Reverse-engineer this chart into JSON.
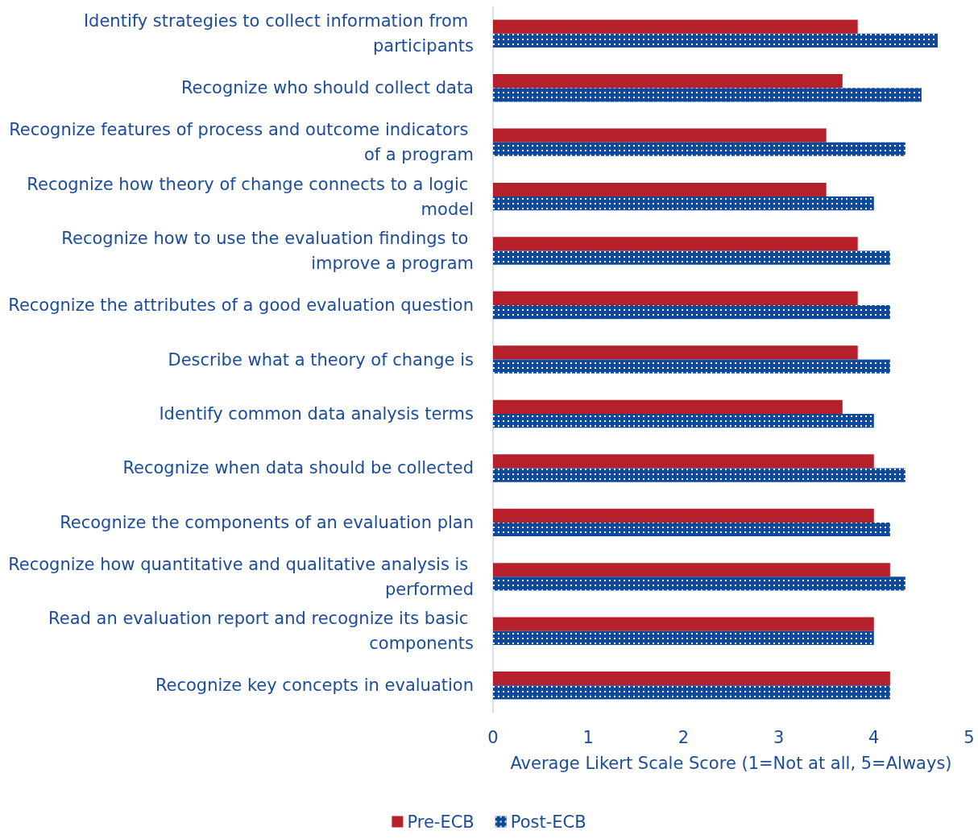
{
  "chart_data": {
    "type": "bar",
    "orientation": "horizontal",
    "categories": [
      "Identify strategies to collect information from participants",
      "Recognize who should collect data",
      "Recognize features of process and outcome indicators of a program",
      "Recognize how theory of change connects to a logic model",
      "Recognize how to use the evaluation findings to improve a program",
      "Recognize the attributes of a good evaluation question",
      "Describe what a theory of change is",
      "Identify common data analysis terms",
      "Recognize when data should be collected",
      "Recognize the components of an evaluation plan",
      "Recognize how quantitative and qualitative analysis is performed",
      "Read an evaluation report and recognize its basic components",
      "Recognize key concepts in evaluation"
    ],
    "series": [
      {
        "name": "Pre-ECB",
        "color": "#b5202a",
        "values": [
          3.83,
          3.67,
          3.5,
          3.5,
          3.83,
          3.83,
          3.83,
          3.67,
          4,
          4,
          4.17,
          4,
          4.17
        ]
      },
      {
        "name": "Post-ECB",
        "color": "#0f4a9a",
        "values": [
          4.67,
          4.5,
          4.33,
          4,
          4.17,
          4.17,
          4.17,
          4,
          4.33,
          4.17,
          4.33,
          4,
          4.17
        ]
      }
    ],
    "xlabel": "Average Likert Scale Score (1=Not at all, 5=Always)",
    "xlim": [
      0,
      5
    ],
    "xticks": [
      0,
      1,
      2,
      3,
      4,
      5
    ],
    "legend": "bottom"
  }
}
